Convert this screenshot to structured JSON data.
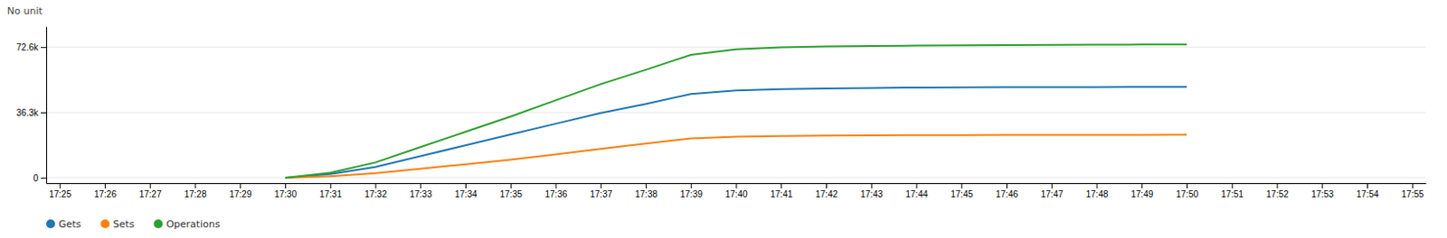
{
  "chart_data": {
    "type": "line",
    "ylabel": "No unit",
    "categories": [
      "17:25",
      "17:26",
      "17:27",
      "17:28",
      "17:29",
      "17:30",
      "17:31",
      "17:32",
      "17:33",
      "17:34",
      "17:35",
      "17:36",
      "17:37",
      "17:38",
      "17:39",
      "17:40",
      "17:41",
      "17:42",
      "17:43",
      "17:44",
      "17:45",
      "17:46",
      "17:47",
      "17:48",
      "17:49",
      "17:50",
      "17:51",
      "17:52",
      "17:53",
      "17:54",
      "17:55"
    ],
    "series": [
      {
        "name": "Gets",
        "values": [
          null,
          null,
          null,
          null,
          null,
          0,
          2000,
          6000,
          12000,
          18000,
          24000,
          30000,
          36000,
          41000,
          46500,
          48500,
          49200,
          49600,
          49900,
          50100,
          50200,
          50300,
          50350,
          50380,
          50400,
          50450,
          null,
          null,
          null,
          null,
          null
        ]
      },
      {
        "name": "Sets",
        "values": [
          null,
          null,
          null,
          null,
          null,
          0,
          800,
          2500,
          5000,
          7500,
          10000,
          13000,
          16000,
          19000,
          21800,
          22800,
          23200,
          23400,
          23550,
          23650,
          23700,
          23750,
          23780,
          23800,
          23820,
          23850,
          null,
          null,
          null,
          null,
          null
        ]
      },
      {
        "name": "Operations",
        "values": [
          null,
          null,
          null,
          null,
          null,
          0,
          2800,
          8500,
          17000,
          25500,
          34000,
          43000,
          52000,
          60000,
          68300,
          71300,
          72400,
          73000,
          73200,
          73400,
          73600,
          73700,
          73800,
          73900,
          74000,
          74100,
          null,
          null,
          null,
          null,
          null
        ]
      }
    ],
    "ylim": [
      -3000,
      84000
    ],
    "yticks": [
      0,
      {
        "value": 36300,
        "label": "36.3k"
      },
      {
        "value": 72600,
        "label": "72.6k"
      }
    ],
    "grid": true,
    "legend": "bottom"
  }
}
